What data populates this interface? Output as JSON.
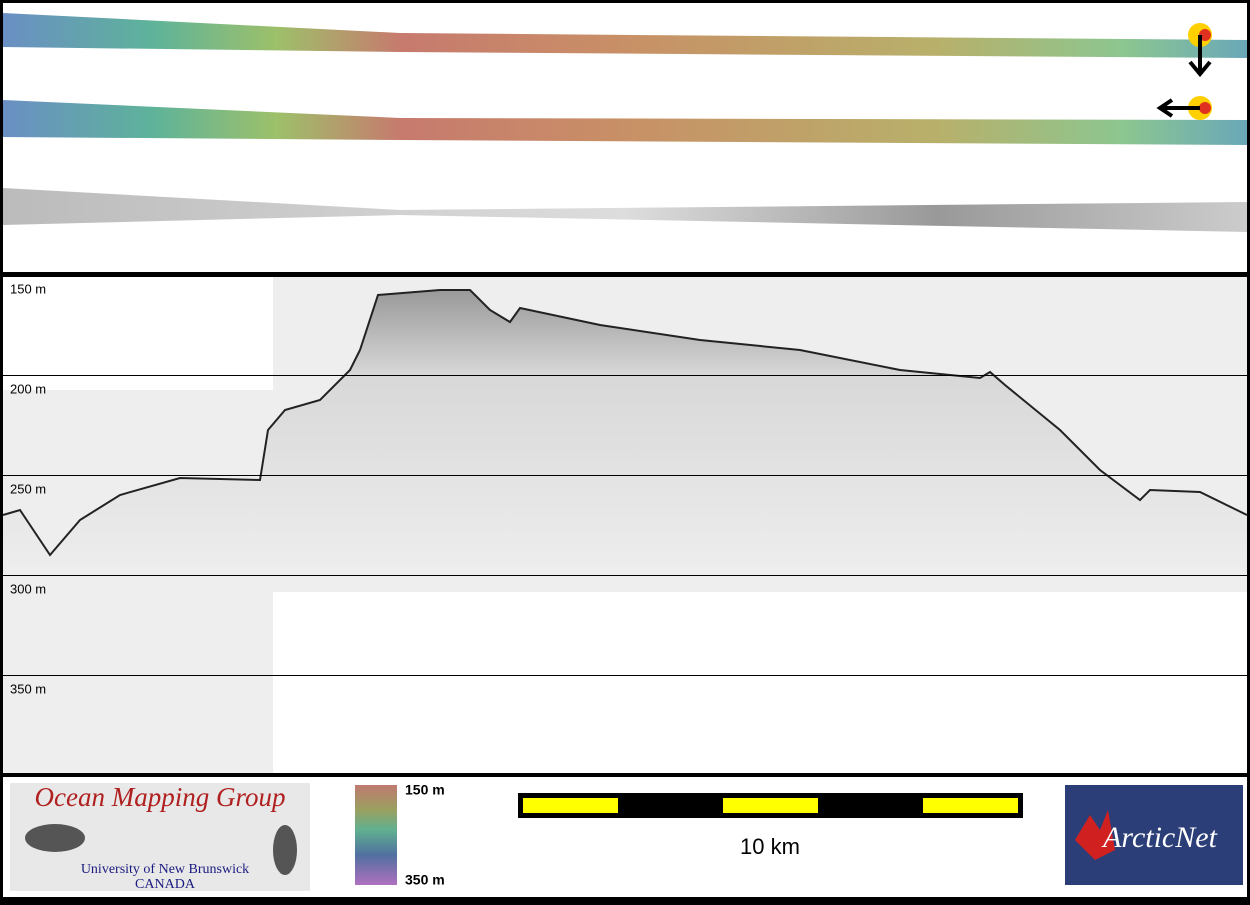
{
  "echogram": {
    "depth_labels": [
      "150 m",
      "200 m",
      "250 m",
      "300 m",
      "350 m"
    ]
  },
  "colorbar": {
    "top_label": "150 m",
    "bottom_label": "350 m"
  },
  "scale_bar": {
    "label": "10 km"
  },
  "logos": {
    "omg_title": "Ocean Mapping Group",
    "omg_university": "University of New Brunswick",
    "omg_country": "CANADA",
    "arcticnet": "ArcticNet"
  }
}
